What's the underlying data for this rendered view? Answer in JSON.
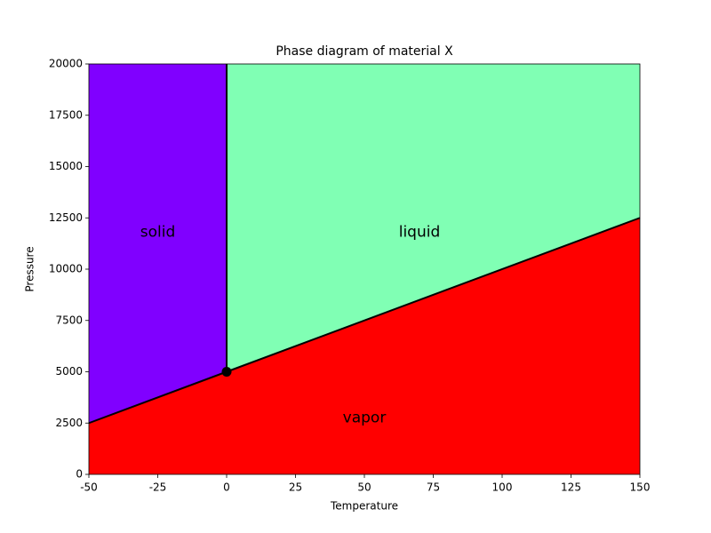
{
  "chart_data": {
    "type": "phase",
    "title": "Phase diagram of material X",
    "x_label": "Temperature",
    "y_label": "Pressure",
    "xlim": [
      -50,
      150
    ],
    "ylim": [
      0,
      20000
    ],
    "xticks": [
      -50,
      -25,
      0,
      25,
      50,
      75,
      100,
      125,
      150
    ],
    "yticks": [
      0,
      2500,
      5000,
      7500,
      10000,
      12500,
      15000,
      17500,
      20000
    ],
    "regions": [
      {
        "name": "vapor",
        "color": "#ff0000",
        "x": [
          -50,
          150,
          150,
          -50
        ],
        "y": [
          0,
          0,
          12500,
          2500
        ],
        "label_x": 50,
        "label_y": 2750
      },
      {
        "name": "solid",
        "color": "#8000ff",
        "x": [
          -50,
          0,
          0,
          -50
        ],
        "y": [
          2500,
          5000,
          20000,
          20000
        ],
        "label_x": -25,
        "label_y": 11800
      },
      {
        "name": "liquid",
        "color": "#80ffb4",
        "x": [
          0,
          150,
          150,
          0
        ],
        "y": [
          5000,
          12500,
          20000,
          20000
        ],
        "label_x": 70,
        "label_y": 11800
      }
    ],
    "lines": [
      {
        "color": "#000000",
        "x": [
          -50,
          150
        ],
        "y": [
          2500,
          12500
        ]
      },
      {
        "color": "#000000",
        "x": [
          0,
          0
        ],
        "y": [
          5000,
          20000
        ]
      }
    ],
    "points": [
      {
        "color": "#000000",
        "x": 0,
        "y": 5000
      }
    ]
  }
}
